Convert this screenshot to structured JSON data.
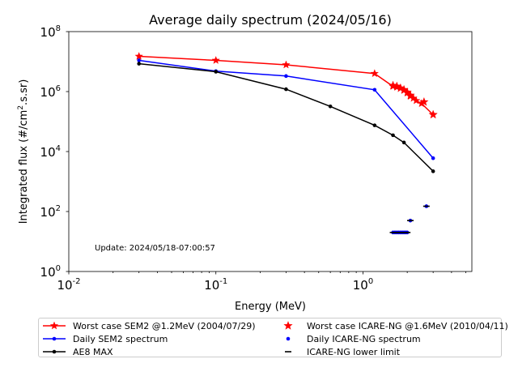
{
  "chart_data": {
    "type": "line",
    "title": "Average daily spectrum (2024/05/16)",
    "xlabel": "Energy (MeV)",
    "ylabel": "Integrated flux (#/cm2.s.sr)",
    "xscale": "log",
    "yscale": "log",
    "xlim": [
      0.01,
      5.5
    ],
    "ylim": [
      1,
      100000000
    ],
    "x_ticks": [
      "10^-2",
      "10^-1",
      "10^0"
    ],
    "y_ticks": [
      "10^0",
      "10^2",
      "10^4",
      "10^6",
      "10^8"
    ],
    "annotation": "Update: 2024/05/18-07:00:57",
    "legend_position": "below",
    "series": [
      {
        "name": "Worst case SEM2 @1.2MeV (2004/07/29)",
        "color": "#ff0000",
        "marker": "star",
        "style": "line",
        "points": [
          [
            0.03,
            15000000
          ],
          [
            0.1,
            11000000
          ],
          [
            0.3,
            7800000
          ],
          [
            1.2,
            4000000
          ],
          [
            1.6,
            1500000
          ],
          [
            1.7,
            1400000
          ],
          [
            1.8,
            1300000
          ],
          [
            1.9,
            1100000
          ],
          [
            2.0,
            900000
          ],
          [
            2.1,
            700000
          ],
          [
            2.2,
            600000
          ],
          [
            2.3,
            500000
          ],
          [
            2.5,
            400000
          ],
          [
            3.0,
            170000
          ]
        ]
      },
      {
        "name": "Daily SEM2 spectrum",
        "color": "#0000ff",
        "marker": "dot",
        "style": "line",
        "points": [
          [
            0.03,
            11000000
          ],
          [
            0.1,
            4800000
          ],
          [
            0.3,
            3300000
          ],
          [
            1.2,
            1150000
          ],
          [
            3.0,
            6000
          ]
        ]
      },
      {
        "name": "AE8 MAX",
        "color": "#000000",
        "marker": "dot",
        "style": "line",
        "points": [
          [
            0.03,
            8500000
          ],
          [
            0.1,
            4600000
          ],
          [
            0.3,
            1200000
          ],
          [
            0.6,
            320000
          ],
          [
            1.2,
            75000
          ],
          [
            1.6,
            35000
          ],
          [
            1.9,
            20000
          ],
          [
            3.0,
            2200
          ]
        ]
      },
      {
        "name": "Worst case ICARE-NG @1.6MeV (2010/04/11)",
        "color": "#ff0000",
        "marker": "star",
        "style": "scatter",
        "points": [
          [
            1.6,
            1600000
          ],
          [
            1.7,
            1500000
          ],
          [
            1.8,
            1300000
          ],
          [
            1.9,
            1150000
          ],
          [
            2.0,
            950000
          ],
          [
            2.1,
            750000
          ],
          [
            2.6,
            450000
          ],
          [
            3.0,
            170000
          ]
        ]
      },
      {
        "name": "Daily ICARE-NG spectrum",
        "color": "#0000ff",
        "marker": "dot",
        "style": "scatter",
        "points": [
          [
            1.6,
            20
          ],
          [
            1.65,
            20
          ],
          [
            1.7,
            20
          ],
          [
            1.75,
            20
          ],
          [
            1.8,
            20
          ],
          [
            1.85,
            20
          ],
          [
            1.9,
            20
          ],
          [
            1.95,
            20
          ],
          [
            2.0,
            20
          ],
          [
            2.1,
            50
          ],
          [
            2.7,
            150
          ]
        ]
      },
      {
        "name": "ICARE-NG lower limit",
        "color": "#000000",
        "marker": "hline",
        "style": "scatter",
        "points": [
          [
            1.6,
            20
          ],
          [
            1.65,
            20
          ],
          [
            1.7,
            20
          ],
          [
            1.75,
            20
          ],
          [
            1.8,
            20
          ],
          [
            1.85,
            20
          ],
          [
            1.9,
            20
          ],
          [
            1.95,
            20
          ],
          [
            2.0,
            20
          ],
          [
            2.1,
            50
          ],
          [
            2.7,
            150
          ]
        ]
      }
    ]
  }
}
